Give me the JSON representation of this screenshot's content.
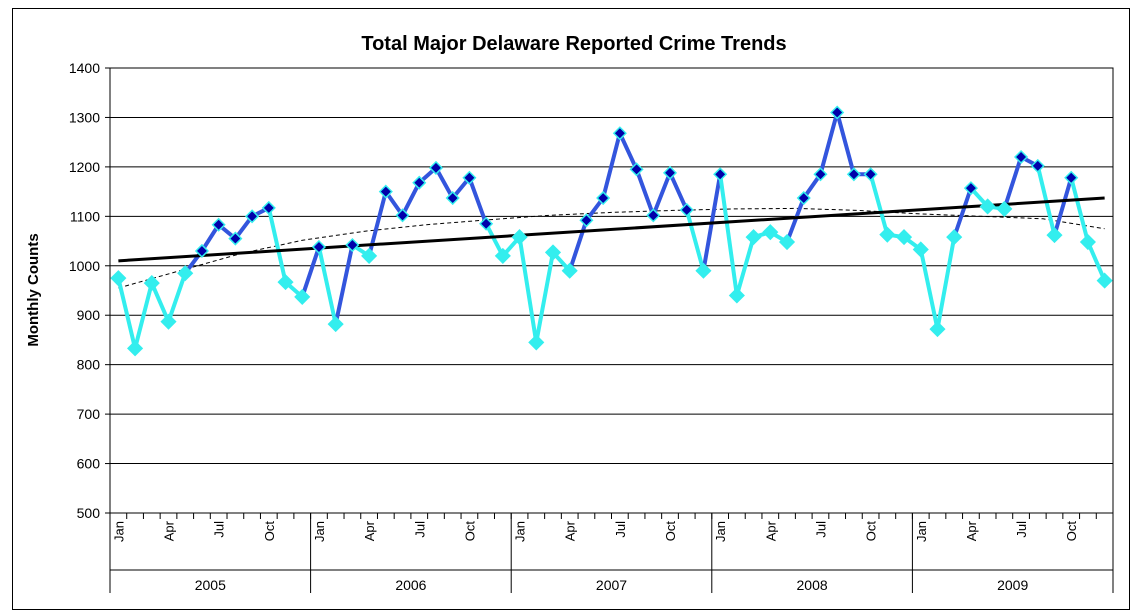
{
  "chart_data": {
    "type": "line",
    "title": "Total Major Delaware Reported Crime Trends",
    "ylabel": "Monthly Counts",
    "xlabel": "",
    "ylim": [
      500,
      1400
    ],
    "yticks": [
      500,
      600,
      700,
      800,
      900,
      1000,
      1100,
      1200,
      1300,
      1400
    ],
    "grid": true,
    "legend": "none",
    "years": [
      "2005",
      "2006",
      "2007",
      "2008",
      "2009"
    ],
    "month_labels": [
      "Jan",
      "Apr",
      "Jul",
      "Oct"
    ],
    "month_label_positions": [
      0,
      3,
      6,
      9
    ],
    "series": [
      {
        "values": [
          975,
          833,
          965,
          887,
          985,
          1030,
          1083,
          1055,
          1100,
          1117,
          967,
          937,
          1038,
          882,
          1042,
          1020,
          1150,
          1102,
          1168,
          1198,
          1137,
          1178,
          1085,
          1020,
          1058,
          845,
          1027,
          990,
          1092,
          1137,
          1268,
          1195,
          1102,
          1188,
          1113,
          990,
          1185,
          940,
          1058,
          1068,
          1048,
          1137,
          1185,
          1310,
          1185,
          1185,
          1063,
          1058,
          1033,
          872,
          1058,
          1157,
          1120,
          1115,
          1220,
          1202,
          1062,
          1178,
          1048,
          970
        ]
      },
      {
        "name": "",
        "type": "linear-trend",
        "values_start_end": [
          1010,
          1137
        ]
      },
      {
        "name": "",
        "type": "moving-trend",
        "values": [
          955,
          990,
          1025,
          1052,
          1070,
          1083,
          1093,
          1102,
          1108,
          1112,
          1115,
          1116,
          1112,
          1105,
          1100,
          1095,
          1075
        ]
      }
    ],
    "colors": {
      "segment_above_trend": "#3355dd",
      "segment_below_trend": "#33eeee",
      "marker_fill_above": "#0000aa",
      "marker_fill_below": "#33eeee",
      "trend_line": "#000000",
      "moving_line": "#000000"
    }
  }
}
